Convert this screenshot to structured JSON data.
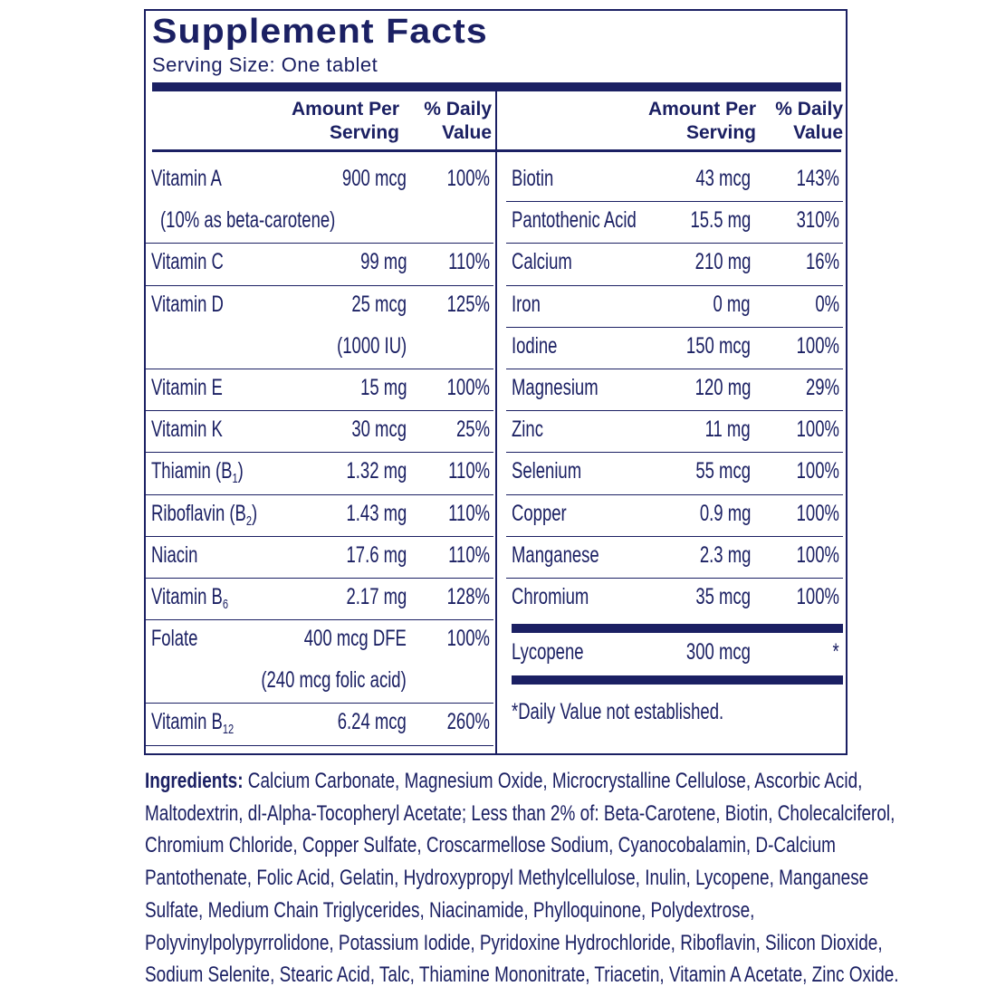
{
  "title": "Supplement Facts",
  "serving_size": "Serving Size: One tablet",
  "headers": {
    "amount": [
      "Amount Per",
      "Serving"
    ],
    "daily": [
      "% Daily",
      "Value"
    ]
  },
  "left_rows": [
    {
      "name": "Vitamin A",
      "amount": "900 mcg",
      "dv": "100%",
      "note": "(10% as beta-carotene)",
      "note_align": "left"
    },
    {
      "name": "Vitamin C",
      "amount": "99 mg",
      "dv": "110%"
    },
    {
      "name": "Vitamin D",
      "amount": "25 mcg",
      "dv": "125%",
      "note": "(1000 IU)",
      "note_align": "right"
    },
    {
      "name": "Vitamin E",
      "amount": "15 mg",
      "dv": "100%"
    },
    {
      "name": "Vitamin K",
      "amount": "30 mcg",
      "dv": "25%"
    },
    {
      "name": "Thiamin (B",
      "sub": "1",
      "after": ")",
      "amount": "1.32 mg",
      "dv": "110%"
    },
    {
      "name": "Riboflavin (B",
      "sub": "2",
      "after": ")",
      "amount": "1.43 mg",
      "dv": "110%"
    },
    {
      "name": "Niacin",
      "amount": "17.6 mg",
      "dv": "110%"
    },
    {
      "name": "Vitamin B",
      "sub": "6",
      "amount": "2.17 mg",
      "dv": "128%"
    },
    {
      "name": "Folate",
      "amount": "400 mcg DFE",
      "dv": "100%",
      "note": "(240 mcg folic acid)",
      "note_align": "right"
    },
    {
      "name": "Vitamin B",
      "sub": "12",
      "amount": "6.24 mcg",
      "dv": "260%"
    }
  ],
  "right_rows": [
    {
      "name": "Biotin",
      "amount": "43 mcg",
      "dv": "143%"
    },
    {
      "name": "Pantothenic Acid",
      "amount": "15.5 mg",
      "dv": "310%"
    },
    {
      "name": "Calcium",
      "amount": "210 mg",
      "dv": "16%"
    },
    {
      "name": "Iron",
      "amount": "0 mg",
      "dv": "0%"
    },
    {
      "name": "Iodine",
      "amount": "150 mcg",
      "dv": "100%"
    },
    {
      "name": "Magnesium",
      "amount": "120 mg",
      "dv": "29%"
    },
    {
      "name": "Zinc",
      "amount": "11 mg",
      "dv": "100%"
    },
    {
      "name": "Selenium",
      "amount": "55 mcg",
      "dv": "100%"
    },
    {
      "name": "Copper",
      "amount": "0.9 mg",
      "dv": "100%"
    },
    {
      "name": "Manganese",
      "amount": "2.3 mg",
      "dv": "100%"
    },
    {
      "name": "Chromium",
      "amount": "35 mcg",
      "dv": "100%"
    }
  ],
  "lycopene": {
    "name": "Lycopene",
    "amount": "300 mcg",
    "dv": "*"
  },
  "footnote": "*Daily Value not established.",
  "ingredients": {
    "label": "Ingredients:",
    "lines": [
      " Calcium Carbonate, Magnesium Oxide, Microcrystalline Cellulose, Ascorbic Acid,",
      "Maltodextrin, dl-Alpha-Tocopheryl Acetate; Less than 2% of: Beta-Carotene, Biotin, Cholecalciferol,",
      "Chromium Chloride, Copper Sulfate, Croscarmellose Sodium, Cyanocobalamin, D-Calcium",
      "Pantothenate, Folic Acid, Gelatin, Hydroxypropyl Methylcellulose, Inulin, Lycopene, Manganese",
      "Sulfate, Medium Chain Triglycerides, Niacinamide, Phylloquinone, Polydextrose,",
      "Polyvinylpolypyrrolidone, Potassium Iodide, Pyridoxine Hydrochloride, Riboflavin, Silicon Dioxide,",
      "Sodium Selenite, Stearic Acid, Talc, Thiamine Mononitrate, Triacetin, Vitamin A Acetate, Zinc Oxide."
    ]
  },
  "colors": {
    "ink": "#1b2063",
    "background": "#ffffff"
  }
}
